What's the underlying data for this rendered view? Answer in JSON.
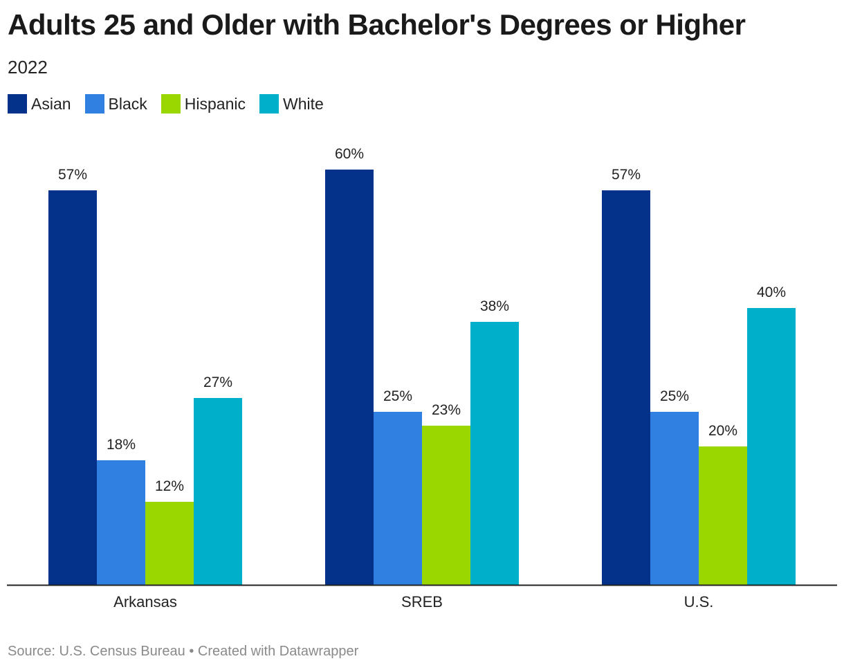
{
  "header": {
    "title": "Adults 25 and Older with Bachelor's Degrees or Higher",
    "subtitle": "2022"
  },
  "footer": {
    "source": "Source: U.S. Census Bureau • Created with Datawrapper"
  },
  "colors": {
    "Asian": "#04318a",
    "Black": "#2f80e1",
    "Hispanic": "#9ad600",
    "White": "#00afca"
  },
  "chart_data": {
    "type": "bar",
    "title": "Adults 25 and Older with Bachelor's Degrees or Higher",
    "subtitle": "2022",
    "categories": [
      "Arkansas",
      "SREB",
      "U.S."
    ],
    "series": [
      {
        "name": "Asian",
        "values": [
          57,
          60,
          57
        ]
      },
      {
        "name": "Black",
        "values": [
          18,
          25,
          25
        ]
      },
      {
        "name": "Hispanic",
        "values": [
          12,
          23,
          20
        ]
      },
      {
        "name": "White",
        "values": [
          27,
          38,
          40
        ]
      }
    ],
    "value_suffix": "%",
    "ylim": [
      0,
      60
    ],
    "grid": false,
    "legend_position": "top-left"
  }
}
